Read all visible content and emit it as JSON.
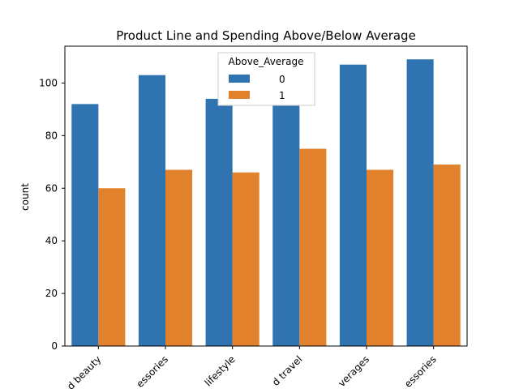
{
  "chart_data": {
    "type": "bar",
    "title": "Product Line and Spending Above/Below Average",
    "xlabel": "",
    "ylabel": "count",
    "categories": [
      "Health and beauty",
      "Electronic accessories",
      "Home and lifestyle",
      "Sports and travel",
      "Food and beverages",
      "Fashion accessories"
    ],
    "visible_tick_labels": [
      "d beauty",
      "essories",
      "lifestyle",
      "d travel",
      "verages",
      "essories"
    ],
    "series": [
      {
        "name": "0",
        "values": [
          92,
          103,
          94,
          93,
          107,
          109
        ],
        "color": "#2f73b0"
      },
      {
        "name": "1",
        "values": [
          60,
          67,
          66,
          75,
          67,
          69
        ],
        "color": "#e1812c"
      }
    ],
    "ylim": [
      0,
      114
    ],
    "yticks": [
      0,
      20,
      40,
      60,
      80,
      100
    ],
    "grid": false,
    "legend": {
      "title": "Above_Average",
      "placement": "top-center"
    }
  }
}
